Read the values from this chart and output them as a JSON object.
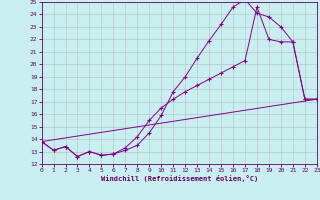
{
  "xlabel": "Windchill (Refroidissement éolien,°C)",
  "background_color": "#c8eef0",
  "grid_color": "#b0b0b0",
  "line_color": "#880088",
  "xlim": [
    0,
    23
  ],
  "ylim": [
    12,
    25
  ],
  "xticks": [
    0,
    1,
    2,
    3,
    4,
    5,
    6,
    7,
    8,
    9,
    10,
    11,
    12,
    13,
    14,
    15,
    16,
    17,
    18,
    19,
    20,
    21,
    22,
    23
  ],
  "yticks": [
    12,
    13,
    14,
    15,
    16,
    17,
    18,
    19,
    20,
    21,
    22,
    23,
    24,
    25
  ],
  "line1_x": [
    0,
    1,
    2,
    3,
    4,
    5,
    6,
    7,
    8,
    9,
    10,
    11,
    12,
    13,
    14,
    15,
    16,
    17,
    18,
    19,
    20,
    21,
    22,
    23
  ],
  "line1_y": [
    13.8,
    13.1,
    13.4,
    12.6,
    13.0,
    12.7,
    12.8,
    13.1,
    13.5,
    14.5,
    15.9,
    17.8,
    19.0,
    20.5,
    21.9,
    23.2,
    24.6,
    25.2,
    24.1,
    23.8,
    23.0,
    21.8,
    17.2,
    17.2
  ],
  "line2_x": [
    0,
    1,
    2,
    3,
    4,
    5,
    6,
    7,
    8,
    9,
    10,
    11,
    12,
    13,
    14,
    15,
    16,
    17,
    18,
    19,
    20,
    21,
    22,
    23
  ],
  "line2_y": [
    13.8,
    13.1,
    13.4,
    12.6,
    13.0,
    12.7,
    12.8,
    13.3,
    14.2,
    15.5,
    16.5,
    17.2,
    17.8,
    18.3,
    18.8,
    19.3,
    19.8,
    20.3,
    24.6,
    22.0,
    21.8,
    21.8,
    17.2,
    17.2
  ],
  "line3_x": [
    0,
    23
  ],
  "line3_y": [
    13.8,
    17.2
  ]
}
